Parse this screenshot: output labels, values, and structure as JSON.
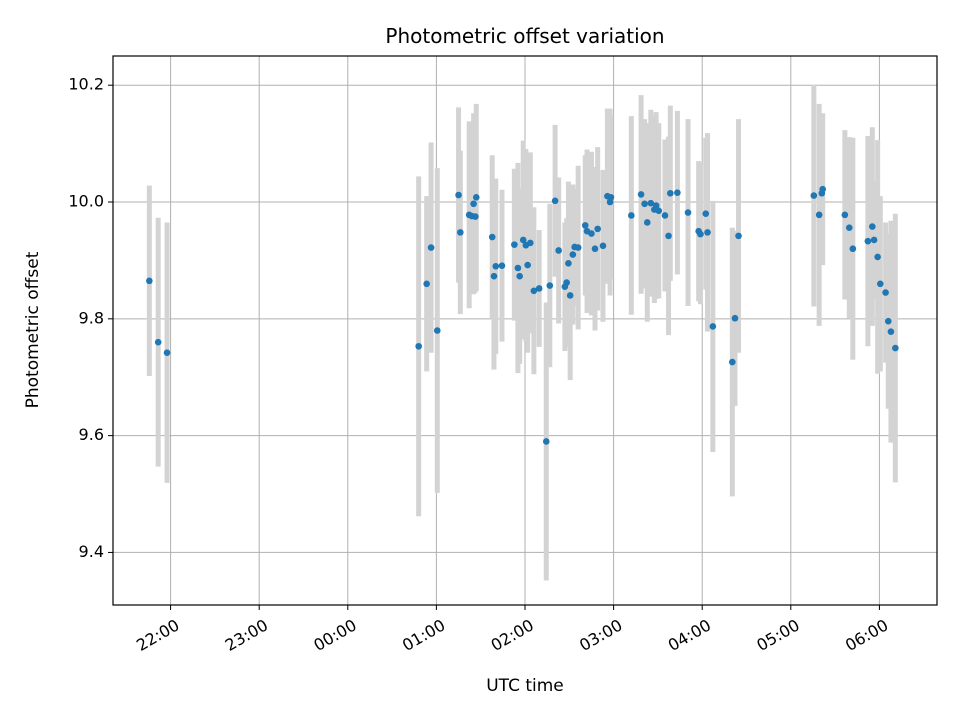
{
  "chart_data": {
    "type": "scatter",
    "title": "Photometric offset variation",
    "xlabel": "UTC time",
    "ylabel": "Photometric offset",
    "grid": true,
    "xlim": [
      -0.65,
      8.65
    ],
    "ylim": [
      9.31,
      10.25
    ],
    "x_ticks": [
      {
        "value": 0,
        "label": "22:00"
      },
      {
        "value": 1,
        "label": "23:00"
      },
      {
        "value": 2,
        "label": "00:00"
      },
      {
        "value": 3,
        "label": "01:00"
      },
      {
        "value": 4,
        "label": "02:00"
      },
      {
        "value": 5,
        "label": "03:00"
      },
      {
        "value": 6,
        "label": "04:00"
      },
      {
        "value": 7,
        "label": "05:00"
      },
      {
        "value": 8,
        "label": "06:00"
      }
    ],
    "y_ticks": [
      {
        "value": 9.4,
        "label": "9.4"
      },
      {
        "value": 9.6,
        "label": "9.6"
      },
      {
        "value": 9.8,
        "label": "9.8"
      },
      {
        "value": 10.0,
        "label": "10.0"
      },
      {
        "value": 10.2,
        "label": "10.2"
      }
    ],
    "colors": {
      "points": "#1f77b4",
      "errorbars": "#d3d3d3",
      "grid": "#b0b0b0"
    },
    "points": [
      [
        -0.24,
        9.865,
        0.163
      ],
      [
        -0.14,
        9.76,
        0.213
      ],
      [
        -0.04,
        9.742,
        0.223
      ],
      [
        2.8,
        9.753,
        0.291
      ],
      [
        2.89,
        9.86,
        0.15
      ],
      [
        2.94,
        9.922,
        0.18
      ],
      [
        3.01,
        9.78,
        0.278
      ],
      [
        3.25,
        10.012,
        0.15
      ],
      [
        3.27,
        9.948,
        0.14
      ],
      [
        3.37,
        9.978,
        0.16
      ],
      [
        3.42,
        9.997,
        0.155
      ],
      [
        3.45,
        10.008,
        0.16
      ],
      [
        3.4,
        9.976,
        0.12
      ],
      [
        3.44,
        9.975,
        0.13
      ],
      [
        3.63,
        9.94,
        0.14
      ],
      [
        3.65,
        9.873,
        0.16
      ],
      [
        3.67,
        9.89,
        0.15
      ],
      [
        3.74,
        9.891,
        0.13
      ],
      [
        3.88,
        9.927,
        0.13
      ],
      [
        3.94,
        9.873,
        0.15
      ],
      [
        3.92,
        9.887,
        0.18
      ],
      [
        3.98,
        9.935,
        0.17
      ],
      [
        4.01,
        9.926,
        0.165
      ],
      [
        4.03,
        9.892,
        0.15
      ],
      [
        4.06,
        9.93,
        0.155
      ],
      [
        4.1,
        9.848,
        0.143
      ],
      [
        4.16,
        9.852,
        0.1
      ],
      [
        4.24,
        9.59,
        0.238
      ],
      [
        4.28,
        9.857,
        0.14
      ],
      [
        4.34,
        10.002,
        0.13
      ],
      [
        4.38,
        9.917,
        0.125
      ],
      [
        4.45,
        9.855,
        0.11
      ],
      [
        4.47,
        9.862,
        0.11
      ],
      [
        4.49,
        9.895,
        0.14
      ],
      [
        4.51,
        9.84,
        0.145
      ],
      [
        4.54,
        9.91,
        0.12
      ],
      [
        4.56,
        9.923,
        0.1
      ],
      [
        4.6,
        9.922,
        0.14
      ],
      [
        4.68,
        9.96,
        0.12
      ],
      [
        4.7,
        9.95,
        0.14
      ],
      [
        4.75,
        9.946,
        0.14
      ],
      [
        4.79,
        9.92,
        0.14
      ],
      [
        4.82,
        9.954,
        0.14
      ],
      [
        4.88,
        9.925,
        0.13
      ],
      [
        4.93,
        10.01,
        0.15
      ],
      [
        4.96,
        10.0,
        0.16
      ],
      [
        4.97,
        10.008,
        0.14
      ],
      [
        5.2,
        9.977,
        0.17
      ],
      [
        5.31,
        10.013,
        0.17
      ],
      [
        5.35,
        9.997,
        0.145
      ],
      [
        5.38,
        9.965,
        0.17
      ],
      [
        5.42,
        9.998,
        0.16
      ],
      [
        5.46,
        9.987,
        0.16
      ],
      [
        5.48,
        9.994,
        0.16
      ],
      [
        5.51,
        9.985,
        0.15
      ],
      [
        5.58,
        9.977,
        0.13
      ],
      [
        5.62,
        9.942,
        0.17
      ],
      [
        5.64,
        10.015,
        0.15
      ],
      [
        5.72,
        10.016,
        0.14
      ],
      [
        5.84,
        9.982,
        0.16
      ],
      [
        5.96,
        9.95,
        0.12
      ],
      [
        5.98,
        9.945,
        0.12
      ],
      [
        6.04,
        9.98,
        0.13
      ],
      [
        6.06,
        9.948,
        0.17
      ],
      [
        6.12,
        9.787,
        0.215
      ],
      [
        6.34,
        9.726,
        0.23
      ],
      [
        6.37,
        9.801,
        0.15
      ],
      [
        6.41,
        9.942,
        0.2
      ],
      [
        7.26,
        10.011,
        0.19
      ],
      [
        7.32,
        9.978,
        0.19
      ],
      [
        7.35,
        10.015,
        0.12
      ],
      [
        7.36,
        10.022,
        0.13
      ],
      [
        7.61,
        9.978,
        0.145
      ],
      [
        7.66,
        9.956,
        0.155
      ],
      [
        7.7,
        9.92,
        0.19
      ],
      [
        7.87,
        9.933,
        0.18
      ],
      [
        7.92,
        9.958,
        0.17
      ],
      [
        7.94,
        9.935,
        0.1
      ],
      [
        7.98,
        9.906,
        0.2
      ],
      [
        8.01,
        9.86,
        0.15
      ],
      [
        8.07,
        9.845,
        0.12
      ],
      [
        8.1,
        9.796,
        0.15
      ],
      [
        8.13,
        9.778,
        0.19
      ],
      [
        8.18,
        9.75,
        0.23
      ]
    ]
  }
}
